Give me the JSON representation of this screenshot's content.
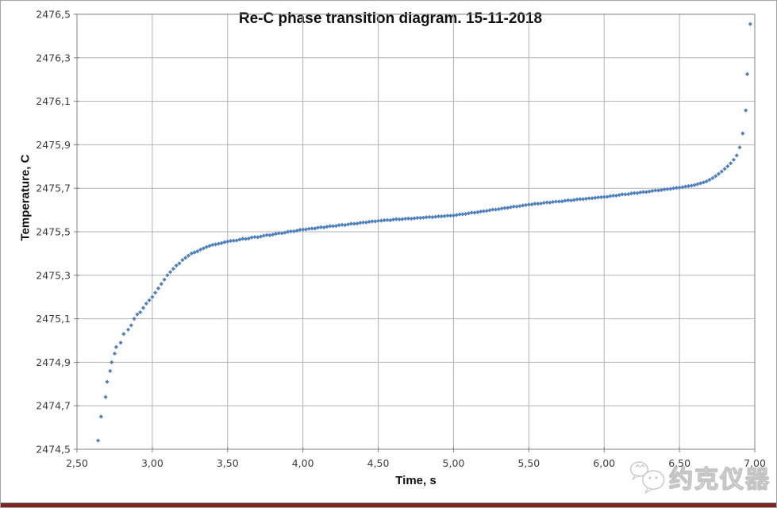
{
  "page": {
    "background": "#ffffff",
    "border_color": "#a3a3a3",
    "bottom_bar_color": "#7b2422"
  },
  "watermark": {
    "icon": "wechat-icon",
    "text": "约克仪器",
    "outline_color": "#c4c4c4"
  },
  "chart_data": {
    "type": "scatter",
    "title": "Re-C phase transition diagram. 15-11-2018",
    "xlabel": "Time, s",
    "ylabel": "Temperature, C",
    "xlim": [
      2.5,
      7.0
    ],
    "ylim": [
      2474.5,
      2476.5
    ],
    "grid": true,
    "legend": "none",
    "x_ticks": {
      "values": [
        2.5,
        3.0,
        3.5,
        4.0,
        4.5,
        5.0,
        5.5,
        6.0,
        6.5,
        7.0
      ],
      "labels": [
        "2,50",
        "3,00",
        "3,50",
        "4,00",
        "4,50",
        "5,00",
        "5,50",
        "6,00",
        "6,50",
        "7,00"
      ]
    },
    "y_ticks": {
      "values": [
        2474.5,
        2474.7,
        2474.9,
        2475.1,
        2475.3,
        2475.5,
        2475.7,
        2475.9,
        2476.1,
        2476.3,
        2476.5
      ],
      "labels": [
        "2474,5",
        "2474,7",
        "2474,9",
        "2475,1",
        "2475,3",
        "2475,5",
        "2475,7",
        "2475,9",
        "2476,1",
        "2476,3",
        "2476,5"
      ]
    },
    "marker": {
      "shape": "diamond",
      "color": "#4f81bd",
      "size": 5
    },
    "gridline_color": "#b2b2b2",
    "axis_color": "#808080",
    "tick_label_color": "#3c3c3c",
    "series": [
      {
        "name": "temperature",
        "points": [
          [
            2.64,
            2474.54
          ],
          [
            2.66,
            2474.65
          ],
          [
            2.69,
            2474.74
          ],
          [
            2.7,
            2474.81
          ],
          [
            2.72,
            2474.86
          ],
          [
            2.73,
            2474.9
          ],
          [
            2.75,
            2474.94
          ],
          [
            2.76,
            2474.97
          ],
          [
            2.79,
            2474.99
          ],
          [
            2.81,
            2475.03
          ],
          [
            2.84,
            2475.05
          ],
          [
            2.86,
            2475.07
          ],
          [
            2.88,
            2475.1
          ],
          [
            2.9,
            2475.12
          ],
          [
            2.92,
            2475.13
          ],
          [
            2.94,
            2475.15
          ],
          [
            2.96,
            2475.17
          ],
          [
            2.98,
            2475.185
          ],
          [
            3.0,
            2475.2
          ],
          [
            3.02,
            2475.22
          ],
          [
            3.04,
            2475.24
          ],
          [
            3.06,
            2475.26
          ],
          [
            3.08,
            2475.28
          ],
          [
            3.1,
            2475.3
          ],
          [
            3.12,
            2475.315
          ],
          [
            3.14,
            2475.33
          ],
          [
            3.16,
            2475.345
          ],
          [
            3.18,
            2475.355
          ],
          [
            3.2,
            2475.37
          ],
          [
            3.22,
            2475.38
          ],
          [
            3.24,
            2475.39
          ],
          [
            3.26,
            2475.4
          ],
          [
            3.28,
            2475.405
          ],
          [
            3.3,
            2475.41
          ],
          [
            3.32,
            2475.418
          ],
          [
            3.34,
            2475.424
          ],
          [
            3.36,
            2475.43
          ],
          [
            3.38,
            2475.435
          ],
          [
            3.4,
            2475.44
          ],
          [
            3.42,
            2475.442
          ],
          [
            3.44,
            2475.445
          ],
          [
            3.46,
            2475.448
          ],
          [
            3.48,
            2475.452
          ],
          [
            3.5,
            2475.455
          ],
          [
            3.52,
            2475.458
          ],
          [
            3.54,
            2475.459
          ],
          [
            3.56,
            2475.46
          ],
          [
            3.58,
            2475.464
          ],
          [
            3.6,
            2475.468
          ],
          [
            3.62,
            2475.467
          ],
          [
            3.64,
            2475.469
          ],
          [
            3.66,
            2475.474
          ],
          [
            3.68,
            2475.476
          ],
          [
            3.7,
            2475.475
          ],
          [
            3.72,
            2475.478
          ],
          [
            3.74,
            2475.482
          ],
          [
            3.76,
            2475.485
          ],
          [
            3.78,
            2475.484
          ],
          [
            3.8,
            2475.487
          ],
          [
            3.82,
            2475.491
          ],
          [
            3.84,
            2475.493
          ],
          [
            3.86,
            2475.493
          ],
          [
            3.88,
            2475.496
          ],
          [
            3.9,
            2475.5
          ],
          [
            3.92,
            2475.502
          ],
          [
            3.94,
            2475.502
          ],
          [
            3.96,
            2475.505
          ],
          [
            3.98,
            2475.509
          ],
          [
            4.0,
            2475.51
          ],
          [
            4.02,
            2475.511
          ],
          [
            4.04,
            2475.514
          ],
          [
            4.06,
            2475.515
          ],
          [
            4.08,
            2475.515
          ],
          [
            4.1,
            2475.519
          ],
          [
            4.12,
            2475.521
          ],
          [
            4.14,
            2475.52
          ],
          [
            4.16,
            2475.523
          ],
          [
            4.18,
            2475.526
          ],
          [
            4.2,
            2475.526
          ],
          [
            4.22,
            2475.527
          ],
          [
            4.24,
            2475.53
          ],
          [
            4.26,
            2475.532
          ],
          [
            4.28,
            2475.531
          ],
          [
            4.3,
            2475.534
          ],
          [
            4.32,
            2475.537
          ],
          [
            4.34,
            2475.537
          ],
          [
            4.36,
            2475.538
          ],
          [
            4.38,
            2475.541
          ],
          [
            4.4,
            2475.543
          ],
          [
            4.42,
            2475.543
          ],
          [
            4.44,
            2475.546
          ],
          [
            4.46,
            2475.548
          ],
          [
            4.48,
            2475.548
          ],
          [
            4.5,
            2475.55
          ],
          [
            4.52,
            2475.551
          ],
          [
            4.54,
            2475.553
          ],
          [
            4.56,
            2475.554
          ],
          [
            4.58,
            2475.553
          ],
          [
            4.6,
            2475.556
          ],
          [
            4.62,
            2475.558
          ],
          [
            4.64,
            2475.557
          ],
          [
            4.66,
            2475.558
          ],
          [
            4.68,
            2475.56
          ],
          [
            4.7,
            2475.561
          ],
          [
            4.72,
            2475.56
          ],
          [
            4.74,
            2475.562
          ],
          [
            4.76,
            2475.564
          ],
          [
            4.78,
            2475.564
          ],
          [
            4.8,
            2475.565
          ],
          [
            4.82,
            2475.567
          ],
          [
            4.84,
            2475.568
          ],
          [
            4.86,
            2475.567
          ],
          [
            4.88,
            2475.569
          ],
          [
            4.9,
            2475.571
          ],
          [
            4.92,
            2475.571
          ],
          [
            4.94,
            2475.572
          ],
          [
            4.96,
            2475.574
          ],
          [
            4.98,
            2475.574
          ],
          [
            5.0,
            2475.575
          ],
          [
            5.02,
            2475.577
          ],
          [
            5.04,
            2475.58
          ],
          [
            5.06,
            2475.581
          ],
          [
            5.08,
            2475.582
          ],
          [
            5.1,
            2475.585
          ],
          [
            5.12,
            2475.588
          ],
          [
            5.14,
            2475.588
          ],
          [
            5.16,
            2475.59
          ],
          [
            5.18,
            2475.593
          ],
          [
            5.2,
            2475.595
          ],
          [
            5.22,
            2475.596
          ],
          [
            5.24,
            2475.599
          ],
          [
            5.26,
            2475.602
          ],
          [
            5.28,
            2475.602
          ],
          [
            5.3,
            2475.604
          ],
          [
            5.32,
            2475.607
          ],
          [
            5.34,
            2475.609
          ],
          [
            5.36,
            2475.61
          ],
          [
            5.38,
            2475.613
          ],
          [
            5.4,
            2475.616
          ],
          [
            5.42,
            2475.616
          ],
          [
            5.44,
            2475.618
          ],
          [
            5.46,
            2475.621
          ],
          [
            5.48,
            2475.623
          ],
          [
            5.5,
            2475.625
          ],
          [
            5.52,
            2475.626
          ],
          [
            5.54,
            2475.629
          ],
          [
            5.56,
            2475.629
          ],
          [
            5.58,
            2475.63
          ],
          [
            5.6,
            2475.633
          ],
          [
            5.62,
            2475.635
          ],
          [
            5.64,
            2475.634
          ],
          [
            5.66,
            2475.637
          ],
          [
            5.68,
            2475.639
          ],
          [
            5.7,
            2475.639
          ],
          [
            5.72,
            2475.64
          ],
          [
            5.74,
            2475.643
          ],
          [
            5.76,
            2475.645
          ],
          [
            5.78,
            2475.644
          ],
          [
            5.8,
            2475.646
          ],
          [
            5.82,
            2475.649
          ],
          [
            5.84,
            2475.65
          ],
          [
            5.86,
            2475.65
          ],
          [
            5.88,
            2475.652
          ],
          [
            5.9,
            2475.654
          ],
          [
            5.92,
            2475.654
          ],
          [
            5.94,
            2475.656
          ],
          [
            5.96,
            2475.658
          ],
          [
            5.98,
            2475.659
          ],
          [
            6.0,
            2475.66
          ],
          [
            6.02,
            2475.661
          ],
          [
            6.04,
            2475.664
          ],
          [
            6.06,
            2475.666
          ],
          [
            6.08,
            2475.666
          ],
          [
            6.1,
            2475.669
          ],
          [
            6.12,
            2475.672
          ],
          [
            6.14,
            2475.672
          ],
          [
            6.16,
            2475.673
          ],
          [
            6.18,
            2475.676
          ],
          [
            6.2,
            2475.678
          ],
          [
            6.22,
            2475.678
          ],
          [
            6.24,
            2475.681
          ],
          [
            6.26,
            2475.683
          ],
          [
            6.28,
            2475.683
          ],
          [
            6.3,
            2475.685
          ],
          [
            6.32,
            2475.688
          ],
          [
            6.34,
            2475.69
          ],
          [
            6.36,
            2475.69
          ],
          [
            6.38,
            2475.692
          ],
          [
            6.4,
            2475.695
          ],
          [
            6.42,
            2475.696
          ],
          [
            6.44,
            2475.697
          ],
          [
            6.46,
            2475.7
          ],
          [
            6.48,
            2475.702
          ],
          [
            6.5,
            2475.703
          ],
          [
            6.52,
            2475.705
          ],
          [
            6.54,
            2475.708
          ],
          [
            6.56,
            2475.71
          ],
          [
            6.58,
            2475.712
          ],
          [
            6.6,
            2475.715
          ],
          [
            6.62,
            2475.719
          ],
          [
            6.64,
            2475.723
          ],
          [
            6.66,
            2475.727
          ],
          [
            6.68,
            2475.732
          ],
          [
            6.7,
            2475.739
          ],
          [
            6.72,
            2475.747
          ],
          [
            6.74,
            2475.756
          ],
          [
            6.76,
            2475.766
          ],
          [
            6.78,
            2475.777
          ],
          [
            6.8,
            2475.789
          ],
          [
            6.82,
            2475.801
          ],
          [
            6.84,
            2475.815
          ],
          [
            6.86,
            2475.831
          ],
          [
            6.88,
            2475.851
          ],
          [
            6.9,
            2475.888
          ],
          [
            6.92,
            2475.952
          ],
          [
            6.94,
            2476.058
          ],
          [
            6.95,
            2476.225
          ],
          [
            6.97,
            2476.455
          ]
        ]
      }
    ]
  }
}
